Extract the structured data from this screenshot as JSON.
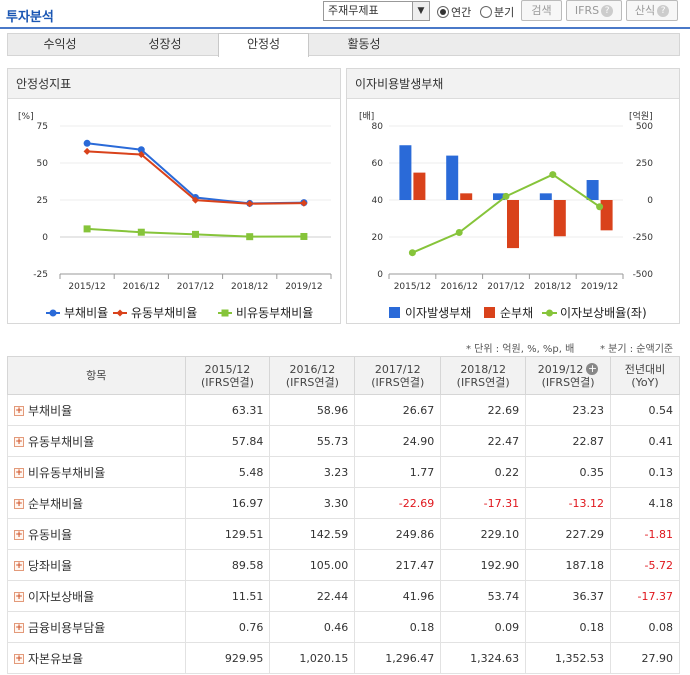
{
  "header": {
    "title": "투자분석",
    "select_value": "주재무제표",
    "radio_annual": "연간",
    "radio_quarter": "분기",
    "search_label": "검색",
    "ifrs_label": "IFRS",
    "formula_label": "산식"
  },
  "tabs": [
    "수익성",
    "성장성",
    "안정성",
    "활동성"
  ],
  "active_tab": "안정성",
  "left_chart": {
    "title": "안정성지표",
    "unit": "[%]",
    "chart_data": {
      "type": "line",
      "categories": [
        "2015/12",
        "2016/12",
        "2017/12",
        "2018/12",
        "2019/12"
      ],
      "ylim": [
        -25,
        75
      ],
      "yticks": [
        "75",
        "50",
        "25",
        "0",
        "-25"
      ],
      "series": [
        {
          "name": "부채비율",
          "color": "#2a6ad8",
          "values": [
            63.31,
            58.96,
            26.67,
            22.69,
            23.23
          ]
        },
        {
          "name": "유동부채비율",
          "color": "#d9421b",
          "values": [
            57.84,
            55.73,
            24.9,
            22.47,
            22.87
          ]
        },
        {
          "name": "비유동부채비율",
          "color": "#86c43a",
          "values": [
            5.48,
            3.23,
            1.77,
            0.22,
            0.35
          ]
        }
      ]
    }
  },
  "right_chart": {
    "title": "이자비용발생부채",
    "unit_left": "[배]",
    "unit_right": "[억원]",
    "chart_data": {
      "type": "bar",
      "categories": [
        "2015/12",
        "2016/12",
        "2017/12",
        "2018/12",
        "2019/12"
      ],
      "ylim_left": [
        0,
        80
      ],
      "ylim_right": [
        -500,
        500
      ],
      "yticks_left": [
        "80",
        "60",
        "40",
        "20",
        "0"
      ],
      "yticks_right": [
        "500",
        "250",
        "0",
        "-250",
        "-500"
      ],
      "series": [
        {
          "name": "이자발생부채",
          "color": "#2a6ad8",
          "axis": "right",
          "values": [
            370,
            300,
            45,
            45,
            135
          ]
        },
        {
          "name": "순부채",
          "color": "#d9421b",
          "axis": "right",
          "values": [
            185,
            45,
            -325,
            -245,
            -205
          ]
        },
        {
          "name": "이자보상배율(좌)",
          "color": "#86c43a",
          "axis": "left",
          "values": [
            11.51,
            22.44,
            41.96,
            53.74,
            36.37
          ]
        }
      ]
    }
  },
  "notes": {
    "unit_note": "* 단위 : 억원, %, %p, 배",
    "quarter_note": "* 분기 : 순액기준"
  },
  "table": {
    "header_item": "항목",
    "columns": [
      {
        "period": "2015/12",
        "basis": "(IFRS연결)"
      },
      {
        "period": "2016/12",
        "basis": "(IFRS연결)"
      },
      {
        "period": "2017/12",
        "basis": "(IFRS연결)"
      },
      {
        "period": "2018/12",
        "basis": "(IFRS연결)"
      },
      {
        "period": "2019/12",
        "basis": "(IFRS연결)"
      }
    ],
    "yoy_header": "전년대비",
    "yoy_sub": "(YoY)",
    "rows": [
      {
        "label": "부채비율",
        "values": [
          "63.31",
          "58.96",
          "26.67",
          "22.69",
          "23.23",
          "0.54"
        ]
      },
      {
        "label": "유동부채비율",
        "values": [
          "57.84",
          "55.73",
          "24.90",
          "22.47",
          "22.87",
          "0.41"
        ]
      },
      {
        "label": "비유동부채비율",
        "values": [
          "5.48",
          "3.23",
          "1.77",
          "0.22",
          "0.35",
          "0.13"
        ]
      },
      {
        "label": "순부채비율",
        "values": [
          "16.97",
          "3.30",
          "-22.69",
          "-17.31",
          "-13.12",
          "4.18"
        ]
      },
      {
        "label": "유동비율",
        "values": [
          "129.51",
          "142.59",
          "249.86",
          "229.10",
          "227.29",
          "-1.81"
        ]
      },
      {
        "label": "당좌비율",
        "values": [
          "89.58",
          "105.00",
          "217.47",
          "192.90",
          "187.18",
          "-5.72"
        ]
      },
      {
        "label": "이자보상배율",
        "values": [
          "11.51",
          "22.44",
          "41.96",
          "53.74",
          "36.37",
          "-17.37"
        ]
      },
      {
        "label": "금융비용부담율",
        "values": [
          "0.76",
          "0.46",
          "0.18",
          "0.09",
          "0.18",
          "0.08"
        ]
      },
      {
        "label": "자본유보율",
        "values": [
          "929.95",
          "1,020.15",
          "1,296.47",
          "1,324.63",
          "1,352.53",
          "27.90"
        ]
      }
    ]
  }
}
